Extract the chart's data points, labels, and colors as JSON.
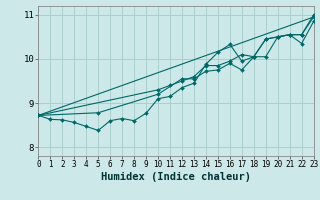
{
  "xlabel": "Humidex (Indice chaleur)",
  "xlim": [
    0,
    23
  ],
  "ylim": [
    7.8,
    11.2
  ],
  "yticks": [
    8,
    9,
    10,
    11
  ],
  "xticks": [
    0,
    1,
    2,
    3,
    4,
    5,
    6,
    7,
    8,
    9,
    10,
    11,
    12,
    13,
    14,
    15,
    16,
    17,
    18,
    19,
    20,
    21,
    22,
    23
  ],
  "bg_color": "#cce8e8",
  "line_color": "#006868",
  "grid_color": "#aacece",
  "lines": [
    {
      "x": [
        0,
        1,
        2,
        3,
        4,
        5,
        6,
        7,
        8,
        9,
        10,
        11,
        12,
        13,
        14,
        15,
        16,
        17,
        18,
        19,
        20,
        21,
        22,
        23
      ],
      "y": [
        8.72,
        8.63,
        8.62,
        8.56,
        8.47,
        8.38,
        8.6,
        8.65,
        8.6,
        8.77,
        9.1,
        9.15,
        9.35,
        9.45,
        9.88,
        10.15,
        10.33,
        9.95,
        10.05,
        10.45,
        10.5,
        10.55,
        10.35,
        10.85
      ],
      "markers": true
    },
    {
      "x": [
        0,
        5,
        10,
        12,
        13,
        14,
        15,
        16,
        17,
        18,
        19,
        20,
        21,
        22,
        23
      ],
      "y": [
        8.72,
        8.78,
        9.2,
        9.55,
        9.55,
        9.72,
        9.75,
        9.9,
        9.75,
        10.05,
        10.05,
        10.5,
        10.55,
        10.55,
        10.95
      ],
      "markers": true
    },
    {
      "x": [
        0,
        10,
        11,
        12,
        13,
        14,
        15,
        16,
        17,
        18,
        19,
        20,
        21,
        22,
        23
      ],
      "y": [
        8.72,
        9.3,
        9.4,
        9.5,
        9.6,
        9.85,
        9.85,
        9.95,
        10.1,
        10.05,
        10.45,
        10.5,
        10.55,
        10.55,
        11.0
      ],
      "markers": true
    },
    {
      "x": [
        0,
        23
      ],
      "y": [
        8.72,
        10.95
      ],
      "markers": false
    }
  ]
}
